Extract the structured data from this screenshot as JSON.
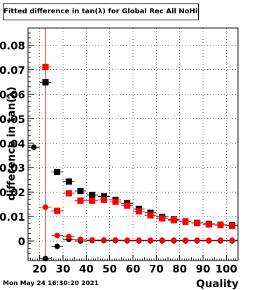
{
  "chart_data": {
    "type": "scatter",
    "title": "Fitted difference in tan(λ) for Global Rec All NoHits",
    "xlabel": "Quality",
    "ylabel": "difference in tan(λ)",
    "timestamp": "Mon May 24 16:30:20 2021",
    "xlim": [
      15,
      105
    ],
    "ylim": [
      -0.008,
      0.087
    ],
    "xticks": [
      20,
      30,
      40,
      50,
      60,
      70,
      80,
      90,
      100
    ],
    "yticks": [
      0,
      0.01,
      0.02,
      0.03,
      0.04,
      0.05,
      0.06,
      0.07,
      0.08
    ],
    "ytick_labels": [
      "0",
      "0.01",
      "0.02",
      "0.03",
      "0.04",
      "0.05",
      "0.06",
      "0.07",
      "0.08"
    ],
    "grid": true,
    "vline_x": 22.5,
    "series": [
      {
        "marker": "square",
        "color": "#000000",
        "x": [
          22.5,
          27.5,
          32.5,
          37.5,
          42.5,
          47.5,
          52.5,
          57.5,
          62.5,
          67.5,
          72.5,
          77.5,
          82.5,
          87.5,
          92.5,
          97.5,
          102.5
        ],
        "y": [
          0.0648,
          0.0282,
          0.0243,
          0.0204,
          0.0188,
          0.0182,
          0.0168,
          0.0154,
          0.0131,
          0.0115,
          0.0098,
          0.0088,
          0.008,
          0.0074,
          0.007,
          0.0066,
          0.0064
        ]
      },
      {
        "marker": "square",
        "color": "#ff0000",
        "x": [
          22.5,
          27.5,
          32.5,
          37.5,
          42.5,
          47.5,
          52.5,
          57.5,
          62.5,
          67.5,
          72.5,
          77.5,
          82.5,
          87.5,
          92.5,
          97.5,
          102.5
        ],
        "y": [
          0.0711,
          0.0123,
          0.0195,
          0.0165,
          0.0165,
          0.0168,
          0.016,
          0.0145,
          0.0121,
          0.0105,
          0.0092,
          0.0085,
          0.0079,
          0.0073,
          0.0068,
          0.0065,
          0.0062
        ]
      },
      {
        "marker": "circle",
        "color": "#000000",
        "x": [
          17.5,
          22.5,
          27.5,
          32.5,
          37.5,
          42.5,
          47.5,
          52.5,
          57.5,
          62.5,
          67.5,
          72.5,
          77.5,
          82.5,
          87.5,
          92.5,
          97.5,
          102.5
        ],
        "y": [
          0.0383,
          -0.0072,
          -0.0022,
          0.0007,
          0.0,
          0.0002,
          0.0002,
          0.0002,
          0.0001,
          0.0001,
          0.0001,
          0.0001,
          0.0001,
          0.0001,
          0.0001,
          0.0001,
          0.0001,
          0.0001
        ]
      },
      {
        "marker": "circle",
        "color": "#ff0000",
        "x": [
          22.5,
          27.5,
          32.5,
          37.5,
          42.5,
          47.5,
          52.5,
          57.5,
          62.5,
          67.5,
          72.5,
          77.5,
          82.5,
          87.5,
          92.5,
          97.5,
          102.5
        ],
        "y": [
          0.0138,
          0.0022,
          0.0018,
          0.0007,
          0.0004,
          0.0004,
          0.0004,
          0.0003,
          0.0003,
          0.0003,
          0.0003,
          0.0003,
          0.0003,
          0.0003,
          0.0003,
          0.0003,
          0.0003
        ]
      }
    ]
  }
}
